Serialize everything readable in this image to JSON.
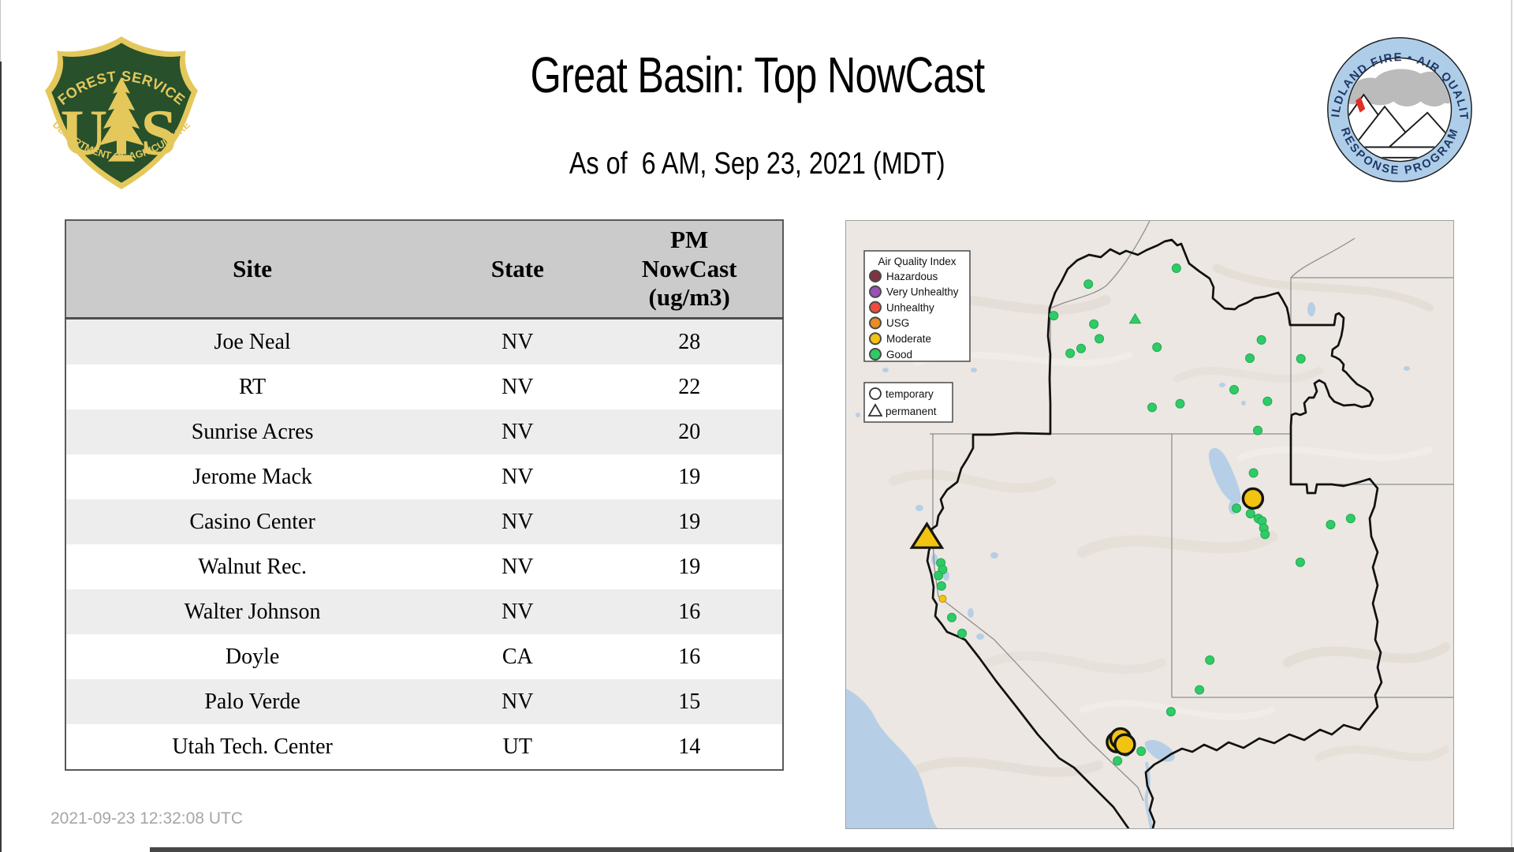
{
  "page": {
    "title": "Great Basin: Top NowCast",
    "subtitle": "As of  6 AM, Sep 23, 2021 (MDT)",
    "timestamp": "2021-09-23 12:32:08 UTC"
  },
  "usfs_logo": {
    "top_text": "FOREST SERVICE",
    "letter_u": "U",
    "letter_s": "S",
    "bottom_text": "DEPARTMENT OF AGRICULTURE",
    "green": "#27502B",
    "gold": "#E4C85C"
  },
  "wfaqrp_logo": {
    "top_text": "WILDLAND FIRE • AIR QUALITY",
    "bottom_text": "RESPONSE PROGRAM",
    "ring_color": "#AECDE9",
    "text_color": "#203864",
    "flame_color": "#E03128",
    "smoke_color": "#BBBBBB"
  },
  "table": {
    "columns": [
      "Site",
      "State",
      "PM NowCast (ug/m3)"
    ],
    "rows": [
      [
        "Joe Neal",
        "NV",
        "28"
      ],
      [
        "RT",
        "NV",
        "22"
      ],
      [
        "Sunrise Acres",
        "NV",
        "20"
      ],
      [
        "Jerome Mack",
        "NV",
        "19"
      ],
      [
        "Casino Center",
        "NV",
        "19"
      ],
      [
        "Walnut Rec.",
        "NV",
        "19"
      ],
      [
        "Walter Johnson",
        "NV",
        "16"
      ],
      [
        "Doyle",
        "CA",
        "16"
      ],
      [
        "Palo Verde",
        "NV",
        "15"
      ],
      [
        "Utah Tech. Center",
        "UT",
        "14"
      ]
    ]
  },
  "map": {
    "aqi_legend": {
      "title": "Air Quality Index",
      "items": [
        {
          "label": "Hazardous",
          "color": "#7D3541"
        },
        {
          "label": "Very Unhealthy",
          "color": "#9B51B4"
        },
        {
          "label": "Unhealthy",
          "color": "#ED4B40"
        },
        {
          "label": "USG",
          "color": "#EC8D21"
        },
        {
          "label": "Moderate",
          "color": "#F2C411"
        },
        {
          "label": "Good",
          "color": "#2FCB66"
        }
      ]
    },
    "marker_legend": {
      "items": [
        {
          "label": "temporary",
          "shape": "circle"
        },
        {
          "label": "permanent",
          "shape": "triangle"
        }
      ]
    },
    "colors": {
      "terrain": "#ECE7E2",
      "water": "#B7CFE6",
      "good_fill": "#2FCB66",
      "good_edge": "#23A854",
      "moderate_fill": "#F2C411",
      "moderate_edge": "#B8900A",
      "big_ring": "#141414"
    },
    "markers": [
      {
        "type": "good",
        "x": 0.544,
        "y": 0.078
      },
      {
        "type": "good",
        "x": 0.399,
        "y": 0.104
      },
      {
        "type": "good",
        "x": 0.342,
        "y": 0.156
      },
      {
        "type": "good",
        "x": 0.408,
        "y": 0.17
      },
      {
        "type": "good",
        "x": 0.417,
        "y": 0.194
      },
      {
        "type": "good",
        "x": 0.387,
        "y": 0.21
      },
      {
        "type": "good",
        "x": 0.369,
        "y": 0.218
      },
      {
        "type": "good",
        "x": 0.512,
        "y": 0.208
      },
      {
        "type": "good",
        "x": 0.684,
        "y": 0.196
      },
      {
        "type": "good",
        "x": 0.665,
        "y": 0.226
      },
      {
        "type": "good",
        "x": 0.749,
        "y": 0.227
      },
      {
        "type": "good",
        "x": 0.639,
        "y": 0.278
      },
      {
        "type": "good",
        "x": 0.504,
        "y": 0.307
      },
      {
        "type": "good",
        "x": 0.55,
        "y": 0.301
      },
      {
        "type": "good",
        "x": 0.694,
        "y": 0.297
      },
      {
        "type": "good",
        "x": 0.678,
        "y": 0.345
      },
      {
        "type": "good",
        "x": 0.671,
        "y": 0.415
      },
      {
        "type": "good",
        "x": 0.643,
        "y": 0.473
      },
      {
        "type": "good",
        "x": 0.666,
        "y": 0.482
      },
      {
        "type": "good",
        "x": 0.679,
        "y": 0.49
      },
      {
        "type": "good",
        "x": 0.685,
        "y": 0.494
      },
      {
        "type": "good",
        "x": 0.688,
        "y": 0.506
      },
      {
        "type": "good",
        "x": 0.69,
        "y": 0.516
      },
      {
        "type": "good",
        "x": 0.798,
        "y": 0.5
      },
      {
        "type": "good",
        "x": 0.831,
        "y": 0.49
      },
      {
        "type": "good",
        "x": 0.748,
        "y": 0.562
      },
      {
        "type": "good",
        "x": 0.156,
        "y": 0.563
      },
      {
        "type": "good",
        "x": 0.159,
        "y": 0.574
      },
      {
        "type": "good",
        "x": 0.152,
        "y": 0.584
      },
      {
        "type": "good",
        "x": 0.157,
        "y": 0.601
      },
      {
        "type": "good",
        "x": 0.174,
        "y": 0.653
      },
      {
        "type": "good",
        "x": 0.191,
        "y": 0.679
      },
      {
        "type": "good",
        "x": 0.599,
        "y": 0.723
      },
      {
        "type": "good",
        "x": 0.582,
        "y": 0.772
      },
      {
        "type": "good",
        "x": 0.535,
        "y": 0.808
      },
      {
        "type": "good",
        "x": 0.449,
        "y": 0.862
      },
      {
        "type": "good",
        "x": 0.461,
        "y": 0.874
      },
      {
        "type": "good",
        "x": 0.486,
        "y": 0.873
      },
      {
        "type": "good",
        "x": 0.447,
        "y": 0.889
      },
      {
        "type": "good_tri",
        "x": 0.476,
        "y": 0.162
      },
      {
        "type": "mod_small",
        "x": 0.159,
        "y": 0.622
      },
      {
        "type": "mod_small",
        "x": 0.677,
        "y": 0.468
      },
      {
        "type": "mod_big",
        "x": 0.446,
        "y": 0.858
      },
      {
        "type": "mod_big",
        "x": 0.452,
        "y": 0.852
      },
      {
        "type": "mod_big",
        "x": 0.459,
        "y": 0.862
      },
      {
        "type": "mod_big",
        "x": 0.67,
        "y": 0.457
      },
      {
        "type": "mod_tri_big",
        "x": 0.133,
        "y": 0.521
      }
    ]
  }
}
